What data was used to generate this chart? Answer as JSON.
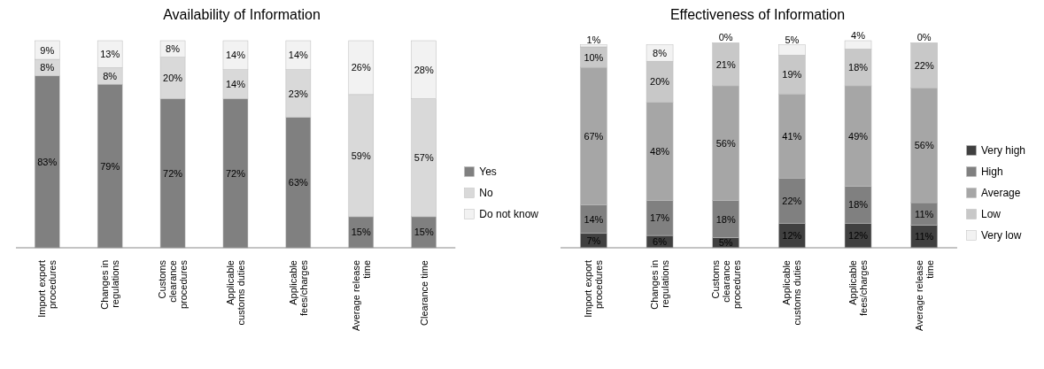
{
  "chart_data": [
    {
      "type": "bar",
      "title": "Availability of Information",
      "stacked": true,
      "legend": "right",
      "categories": [
        "Import export procedures",
        "Changes in regulations",
        "Customs clearance procedures",
        "Applicable customs duties",
        "Applicable fees/charges",
        "Average release time",
        "Clearance time"
      ],
      "series": [
        {
          "name": "Yes",
          "color": "#808080",
          "values": [
            83,
            79,
            72,
            72,
            63,
            15,
            15
          ],
          "value_labels": [
            "83%",
            "79%",
            "72%",
            "72%",
            "63%",
            "15%",
            "15%"
          ]
        },
        {
          "name": "No",
          "color": "#d9d9d9",
          "values": [
            8,
            8,
            20,
            14,
            23,
            59,
            57
          ],
          "value_labels": [
            "8%",
            "8%",
            "20%",
            "14%",
            "23%",
            "59%",
            "57%"
          ]
        },
        {
          "name": "Do not know",
          "color": "#f2f2f2",
          "values": [
            9,
            13,
            8,
            14,
            14,
            26,
            28
          ],
          "value_labels": [
            "9%",
            "13%",
            "8%",
            "14%",
            "14%",
            "26%",
            "28%"
          ]
        }
      ]
    },
    {
      "type": "bar",
      "title": "Effectiveness of Information",
      "stacked": true,
      "legend": "right",
      "categories": [
        "Import export procedures",
        "Changes in regulations",
        "Customs clearance procedures",
        "Applicable customs duties",
        "Applicable fees/charges",
        "Average release time"
      ],
      "series": [
        {
          "name": "Very high",
          "color": "#404040",
          "values": [
            7,
            6,
            5,
            12,
            12,
            11
          ],
          "value_labels": [
            "7%",
            "6%",
            "5%",
            "12%",
            "12%",
            "11%"
          ]
        },
        {
          "name": "High",
          "color": "#808080",
          "values": [
            14,
            17,
            18,
            22,
            18,
            11
          ],
          "value_labels": [
            "14%",
            "17%",
            "18%",
            "22%",
            "18%",
            "11%"
          ]
        },
        {
          "name": "Average",
          "color": "#a6a6a6",
          "values": [
            67,
            48,
            56,
            41,
            49,
            56
          ],
          "value_labels": [
            "67%",
            "48%",
            "56%",
            "41%",
            "49%",
            "56%"
          ]
        },
        {
          "name": "Low",
          "color": "#c8c8c8",
          "values": [
            10,
            20,
            21,
            19,
            18,
            22
          ],
          "value_labels": [
            "10%",
            "20%",
            "21%",
            "19%",
            "18%",
            "22%"
          ]
        },
        {
          "name": "Very low",
          "color": "#f2f2f2",
          "values": [
            1,
            8,
            0,
            5,
            4,
            0
          ],
          "value_labels": [
            "1%",
            "8%",
            "0%",
            "5%",
            "4%",
            "0%"
          ]
        }
      ]
    }
  ]
}
